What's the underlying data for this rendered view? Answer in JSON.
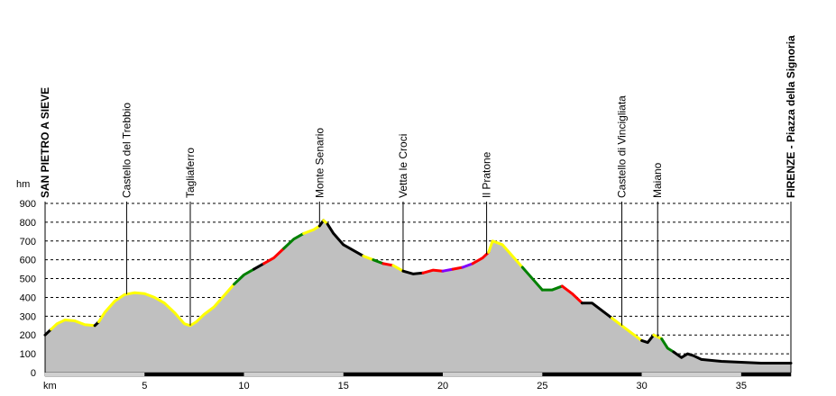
{
  "chart_data": {
    "type": "area",
    "title": "",
    "xlabel": "km",
    "ylabel": "hm",
    "xlim": [
      0,
      37.5
    ],
    "ylim": [
      0,
      900
    ],
    "x_ticks": [
      5,
      10,
      15,
      20,
      25,
      30,
      35
    ],
    "y_ticks": [
      0,
      100,
      200,
      300,
      400,
      500,
      600,
      700,
      800,
      900
    ],
    "grid": "horizontal-dashed",
    "fill_color": "#c0c0c0",
    "segment_colors": {
      "black": "#000000",
      "yellow": "#ffff00",
      "green": "#008000",
      "red": "#ff0000",
      "purple": "#8000ff"
    },
    "profile": {
      "x": [
        0.0,
        0.3,
        0.6,
        1.0,
        1.5,
        2.0,
        2.5,
        2.7,
        3.0,
        3.5,
        4.0,
        4.5,
        5.0,
        5.5,
        6.0,
        6.5,
        7.0,
        7.3,
        7.6,
        8.0,
        8.5,
        9.0,
        9.5,
        10.0,
        10.5,
        11.0,
        11.5,
        12.0,
        12.5,
        13.0,
        13.5,
        13.8,
        14.0,
        14.2,
        14.5,
        15.0,
        15.5,
        16.0,
        16.5,
        17.0,
        17.5,
        18.0,
        18.5,
        19.0,
        19.5,
        20.0,
        20.5,
        21.0,
        21.5,
        22.0,
        22.3,
        22.5,
        23.0,
        23.5,
        24.0,
        24.5,
        25.0,
        25.5,
        26.0,
        26.5,
        27.0,
        27.5,
        28.0,
        28.5,
        29.0,
        29.5,
        30.0,
        30.3,
        30.6,
        31.0,
        31.3,
        31.6,
        32.0,
        32.3,
        32.6,
        33.0,
        34.0,
        35.0,
        36.0,
        37.0,
        37.5
      ],
      "y": [
        200,
        230,
        260,
        280,
        275,
        255,
        250,
        270,
        320,
        380,
        415,
        425,
        420,
        400,
        370,
        320,
        260,
        250,
        270,
        310,
        350,
        410,
        470,
        520,
        550,
        580,
        610,
        660,
        710,
        740,
        760,
        780,
        810,
        790,
        740,
        680,
        650,
        620,
        600,
        580,
        570,
        540,
        525,
        530,
        545,
        540,
        550,
        560,
        580,
        610,
        640,
        700,
        680,
        620,
        560,
        500,
        440,
        440,
        460,
        420,
        370,
        370,
        330,
        290,
        250,
        210,
        170,
        160,
        200,
        180,
        130,
        110,
        80,
        100,
        90,
        70,
        60,
        55,
        50,
        50,
        50
      ],
      "segments": [
        {
          "color": "black",
          "from": 0,
          "to": 0.3
        },
        {
          "color": "yellow",
          "from": 0.3,
          "to": 2.5
        },
        {
          "color": "black",
          "from": 2.5,
          "to": 2.7
        },
        {
          "color": "yellow",
          "from": 2.7,
          "to": 9.5
        },
        {
          "color": "green",
          "from": 9.5,
          "to": 10.5
        },
        {
          "color": "black",
          "from": 10.5,
          "to": 11.0
        },
        {
          "color": "red",
          "from": 11.0,
          "to": 12.0
        },
        {
          "color": "green",
          "from": 12.0,
          "to": 13.0
        },
        {
          "color": "yellow",
          "from": 13.0,
          "to": 13.8
        },
        {
          "color": "black",
          "from": 13.8,
          "to": 14.0
        },
        {
          "color": "yellow",
          "from": 14.0,
          "to": 14.2
        },
        {
          "color": "black",
          "from": 14.2,
          "to": 16.0
        },
        {
          "color": "yellow",
          "from": 16.0,
          "to": 16.5
        },
        {
          "color": "green",
          "from": 16.5,
          "to": 17.0
        },
        {
          "color": "red",
          "from": 17.0,
          "to": 17.5
        },
        {
          "color": "yellow",
          "from": 17.5,
          "to": 18.0
        },
        {
          "color": "black",
          "from": 18.0,
          "to": 19.0
        },
        {
          "color": "red",
          "from": 19.0,
          "to": 20.0
        },
        {
          "color": "purple",
          "from": 20.0,
          "to": 20.5
        },
        {
          "color": "red",
          "from": 20.5,
          "to": 21.0
        },
        {
          "color": "purple",
          "from": 21.0,
          "to": 21.5
        },
        {
          "color": "red",
          "from": 21.5,
          "to": 22.3
        },
        {
          "color": "yellow",
          "from": 22.3,
          "to": 24.0
        },
        {
          "color": "green",
          "from": 24.0,
          "to": 25.0
        },
        {
          "color": "green",
          "from": 25.0,
          "to": 26.0
        },
        {
          "color": "red",
          "from": 26.0,
          "to": 27.0
        },
        {
          "color": "black",
          "from": 27.0,
          "to": 28.5
        },
        {
          "color": "yellow",
          "from": 28.5,
          "to": 30.0
        },
        {
          "color": "black",
          "from": 30.0,
          "to": 30.6
        },
        {
          "color": "yellow",
          "from": 30.6,
          "to": 31.0
        },
        {
          "color": "green",
          "from": 31.0,
          "to": 31.6
        },
        {
          "color": "black",
          "from": 31.6,
          "to": 37.5
        }
      ]
    },
    "waypoints": [
      {
        "label": "SAN PIETRO A SIEVE",
        "km": 0.0,
        "bold": true
      },
      {
        "label": "Castello del Trebbio",
        "km": 4.1,
        "bold": false
      },
      {
        "label": "Tagliaferro",
        "km": 7.3,
        "bold": false
      },
      {
        "label": "Monte Senario",
        "km": 13.8,
        "bold": false
      },
      {
        "label": "Vetta le Croci",
        "km": 18.0,
        "bold": false
      },
      {
        "label": "Il Pratone",
        "km": 22.2,
        "bold": false
      },
      {
        "label": "Castello di Vincigliata",
        "km": 29.0,
        "bold": false
      },
      {
        "label": "Maiano",
        "km": 30.8,
        "bold": false
      },
      {
        "label": "FIRENZE - Piazza della Signoria",
        "km": 37.5,
        "bold": true
      }
    ]
  }
}
